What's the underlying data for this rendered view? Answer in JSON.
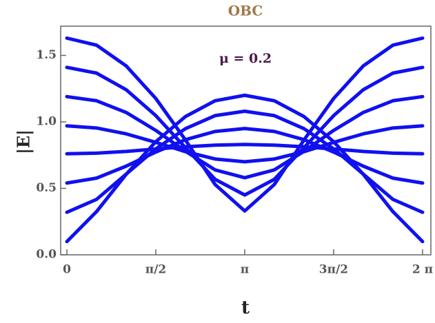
{
  "chart_data": {
    "type": "line",
    "title": "OBC",
    "title_color": "#a0784a",
    "annotation": "μ = 0.2",
    "annotation_color": "#4a1a4a",
    "x_label": "t",
    "y_label": "|E|",
    "x": [
      0,
      0.5236,
      1.0472,
      1.5708,
      2.0944,
      2.618,
      3.1416,
      3.6652,
      4.1888,
      4.7124,
      5.236,
      5.7596,
      6.2832
    ],
    "series": [
      {
        "color": "#1010f0",
        "values": [
          0.1,
          0.325,
          0.606,
          0.851,
          1.04,
          1.159,
          1.2,
          1.159,
          1.04,
          0.851,
          0.606,
          0.325,
          0.1
        ]
      },
      {
        "color": "#1010f0",
        "values": [
          0.32,
          0.417,
          0.607,
          0.797,
          0.949,
          1.047,
          1.08,
          1.047,
          0.949,
          0.797,
          0.607,
          0.417,
          0.32
        ]
      },
      {
        "color": "#1010f0",
        "values": [
          0.54,
          0.577,
          0.667,
          0.773,
          0.866,
          0.928,
          0.95,
          0.928,
          0.866,
          0.773,
          0.667,
          0.577,
          0.54
        ]
      },
      {
        "color": "#1010f0",
        "values": [
          0.76,
          0.765,
          0.778,
          0.796,
          0.813,
          0.825,
          0.83,
          0.825,
          0.813,
          0.796,
          0.778,
          0.765,
          0.76
        ]
      },
      {
        "color": "#1010f0",
        "values": [
          0.97,
          0.954,
          0.91,
          0.846,
          0.776,
          0.721,
          0.7,
          0.721,
          0.776,
          0.846,
          0.91,
          0.954,
          0.97
        ]
      },
      {
        "color": "#1010f0",
        "values": [
          1.19,
          1.159,
          1.071,
          0.936,
          0.779,
          0.639,
          0.58,
          0.639,
          0.779,
          0.936,
          1.071,
          1.159,
          1.19
        ]
      },
      {
        "color": "#1010f0",
        "values": [
          1.41,
          1.367,
          1.242,
          1.047,
          0.806,
          0.568,
          0.45,
          0.568,
          0.806,
          1.047,
          1.242,
          1.367,
          1.41
        ]
      },
      {
        "color": "#1010f0",
        "values": [
          1.63,
          1.577,
          1.421,
          1.176,
          0.864,
          0.529,
          0.33,
          0.529,
          0.864,
          1.176,
          1.421,
          1.577,
          1.63
        ]
      }
    ],
    "xlim": [
      -0.11,
      6.43
    ],
    "ylim": [
      0,
      1.72
    ],
    "xticks": [
      0,
      {
        "value": 1.5708,
        "label": "π/2"
      },
      {
        "value": 3.1416,
        "label": "π"
      },
      {
        "value": 4.7124,
        "label": "3π/2"
      },
      {
        "value": 6.2832,
        "label": "2 π"
      }
    ],
    "yticks": [
      {
        "value": 0,
        "label": "0.0"
      },
      0.5,
      {
        "value": 1,
        "label": "1.0"
      },
      1.5
    ]
  }
}
